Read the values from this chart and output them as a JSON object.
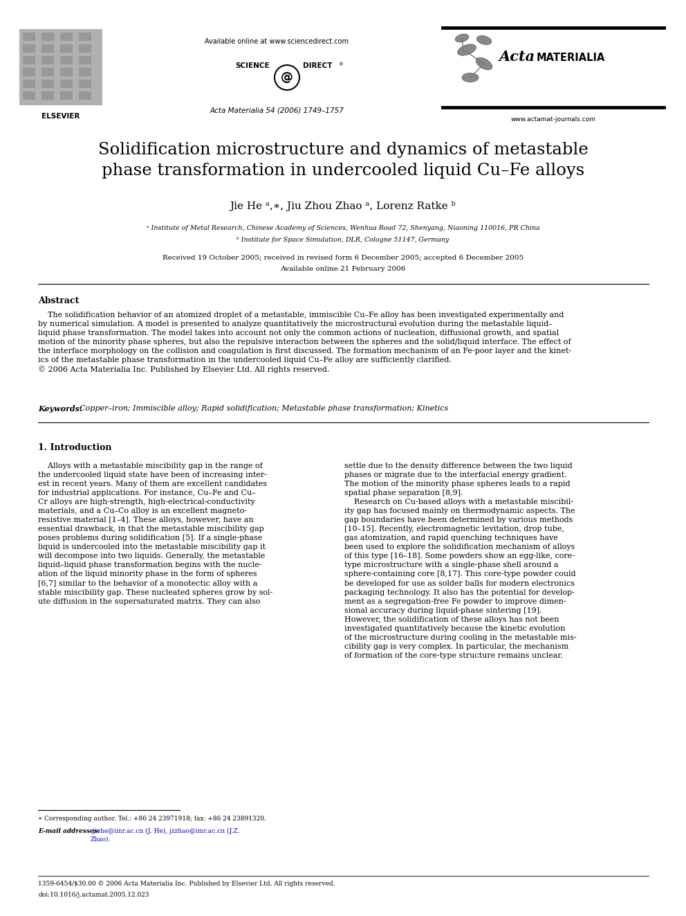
{
  "bg_color": "#ffffff",
  "page_width": 9.92,
  "page_height": 13.23,
  "dpi": 100,
  "header_available": "Available online at www.sciencedirect.com",
  "header_scidir": "SCIENCE ⓐ DIRECT®",
  "header_journal": "Acta Materialia 54 (2006) 1749–1757",
  "header_website": "www.actamat-journals.com",
  "header_elsevier": "ELSEVIER",
  "header_acta_italic": "Acta",
  "header_acta_bold": "MATERIALIA",
  "title_line1": "Solidification microstructure and dynamics of metastable",
  "title_line2": "phase transformation in undercooled liquid Cu–Fe alloys",
  "authors": "Jie He ᵃ,∗, Jiu Zhou Zhao ᵃ, Lorenz Ratke ᵇ",
  "affil_a": "ᵃ Institute of Metal Research, Chinese Academy of Sciences, Wenhua Road 72, Shenyang, Niaoning 110016, PR China",
  "affil_b": "ᵇ Institute for Space Simulation, DLR, Cologne 51147, Germany",
  "received_line1": "Received 19 October 2005; received in revised form 6 December 2005; accepted 6 December 2005",
  "received_line2": "Available online 21 February 2006",
  "abstract_head": "Abstract",
  "abstract_body": "    The solidification behavior of an atomized droplet of a metastable, immiscible Cu–Fe alloy has been investigated experimentally and\nby numerical simulation. A model is presented to analyze quantitatively the microstructural evolution during the metastable liquid–\nliquid phase transformation. The model takes into account not only the common actions of nucleation, diffusional growth, and spatial\nmotion of the minority phase spheres, but also the repulsive interaction between the spheres and the solid/liquid interface. The effect of\nthe interface morphology on the collision and coagulation is first discussed. The formation mechanism of an Fe-poor layer and the kinet-\nics of the metastable phase transformation in the undercooled liquid Cu–Fe alloy are sufficiently clarified.\n© 2006 Acta Materialia Inc. Published by Elsevier Ltd. All rights reserved.",
  "keywords_label": "Keywords:",
  "keywords_body": "  Copper–iron; Immiscible alloy; Rapid solidification; Metastable phase transformation; Kinetics",
  "sec1_num": "1.",
  "sec1_title": "Introduction",
  "col1_text": "    Alloys with a metastable miscibility gap in the range of\nthe undercooled liquid state have been of increasing inter-\nest in recent years. Many of them are excellent candidates\nfor industrial applications. For instance, Cu–Fe and Cu–\nCr alloys are high-strength, high-electrical-conductivity\nmaterials, and a Cu–Co alloy is an excellent magneto-\nresistive material [1–4]. These alloys, however, have an\nessential drawback, in that the metastable miscibility gap\nposes problems during solidification [5]. If a single-phase\nliquid is undercooled into the metastable miscibility gap it\nwill decompose into two liquids. Generally, the metastable\nliquid–liquid phase transformation begins with the nucle-\nation of the liquid minority phase in the form of spheres\n[6,7] similar to the behavior of a monotectic alloy with a\nstable miscibility gap. These nucleated spheres grow by sol-\nute diffusion in the supersaturated matrix. They can also",
  "col2_text": "settle due to the density difference between the two liquid\nphases or migrate due to the interfacial energy gradient.\nThe motion of the minority phase spheres leads to a rapid\nspatial phase separation [8,9].\n    Research on Cu-based alloys with a metastable miscibil-\nity gap has focused mainly on thermodynamic aspects. The\ngap boundaries have been determined by various methods\n[10–15]. Recently, electromagnetic levitation, drop tube,\ngas atomization, and rapid quenching techniques have\nbeen used to explore the solidification mechanism of alloys\nof this type [16–18]. Some powders show an egg-like, core-\ntype microstructure with a single-phase shell around a\nsphere-containing core [8,17]. This core-type powder could\nbe developed for use as solder balls for modern electronics\npackaging technology. It also has the potential for develop-\nment as a segregation-free Fe powder to improve dimen-\nsional accuracy during liquid-phase sintering [19].\nHowever, the solidification of these alloys has not been\ninvestigated quantitatively because the kinetic evolution\nof the microstructure during cooling in the metastable mis-\ncibility gap is very complex. In particular, the mechanism\nof formation of the core-type structure remains unclear.",
  "footnote_star": "∗ Corresponding author. Tel.: +86 24 23971918; fax: +86 24 23891320.",
  "footnote_email_label": "E-mail addresses:",
  "footnote_email_body": " jiehe@imr.ac.cn (J. He), jzzhao@imr.ac.cn (J.Z.\nZhao).",
  "footer_issn": "1359-6454/$30.00 © 2006 Acta Materialia Inc. Published by Elsevier Ltd. All rights reserved.",
  "footer_doi": "doi:10.1016/j.actamat.2005.12.023",
  "line_color": "#000000",
  "text_color": "#000000",
  "link_color": "#0000cc"
}
